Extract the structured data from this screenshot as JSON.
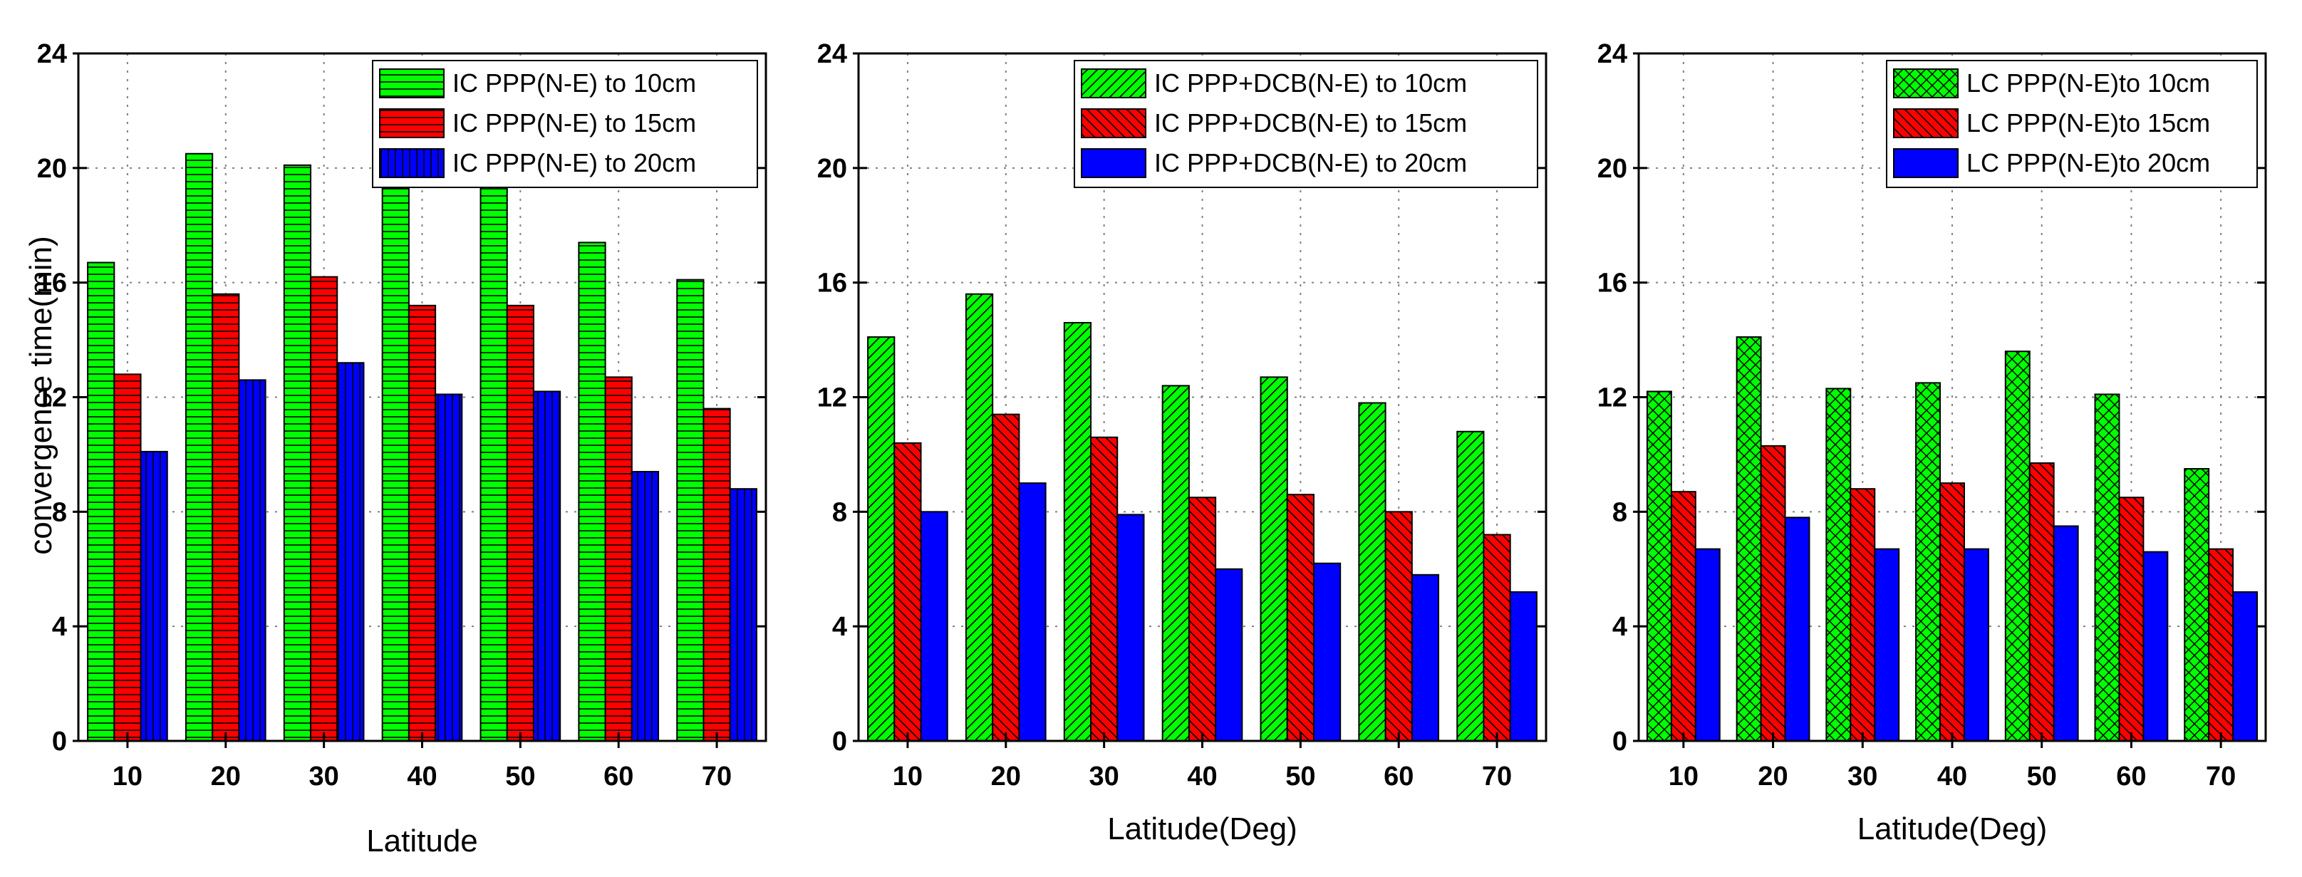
{
  "colors": {
    "green": "#00ff00",
    "red": "#ff0000",
    "blue": "#0000ff",
    "axis": "#000000",
    "grid": "#808080"
  },
  "chart_data": [
    {
      "type": "bar",
      "categories": [
        "10",
        "20",
        "30",
        "40",
        "50",
        "60",
        "70"
      ],
      "xlabel": "Latitude",
      "ylabel": "convergence time(min)",
      "ylim": [
        0,
        24
      ],
      "yticks": [
        "0",
        "4",
        "8",
        "12",
        "16",
        "20",
        "24"
      ],
      "grid": true,
      "legend_position": "top-right",
      "series": [
        {
          "name": "IC PPP(N-E) to 10cm",
          "color": "green",
          "hatch": "horizontal",
          "values": [
            16.7,
            20.5,
            20.1,
            19.3,
            19.4,
            17.4,
            16.1
          ]
        },
        {
          "name": "IC PPP(N-E) to 15cm",
          "color": "red",
          "hatch": "horizontal",
          "values": [
            12.8,
            15.6,
            16.2,
            15.2,
            15.2,
            12.7,
            11.6
          ]
        },
        {
          "name": "IC PPP(N-E) to 20cm",
          "color": "blue",
          "hatch": "vertical",
          "values": [
            10.1,
            12.6,
            13.2,
            12.1,
            12.2,
            9.4,
            8.8
          ]
        }
      ]
    },
    {
      "type": "bar",
      "categories": [
        "10",
        "20",
        "30",
        "40",
        "50",
        "60",
        "70"
      ],
      "xlabel": "Latitude(Deg)",
      "ylabel": "",
      "ylim": [
        0,
        24
      ],
      "yticks": [
        "0",
        "4",
        "8",
        "12",
        "16",
        "20",
        "24"
      ],
      "grid": true,
      "legend_position": "top-right",
      "series": [
        {
          "name": "IC PPP+DCB(N-E) to 10cm",
          "color": "green",
          "hatch": "diagonal-down",
          "values": [
            14.1,
            15.6,
            14.6,
            12.4,
            12.7,
            11.8,
            10.8
          ]
        },
        {
          "name": "IC PPP+DCB(N-E) to 15cm",
          "color": "red",
          "hatch": "diagonal-up",
          "values": [
            10.4,
            11.4,
            10.6,
            8.5,
            8.6,
            8.0,
            7.2
          ]
        },
        {
          "name": "IC PPP+DCB(N-E) to 20cm",
          "color": "blue",
          "hatch": "none",
          "values": [
            8.0,
            9.0,
            7.9,
            6.0,
            6.2,
            5.8,
            5.2
          ]
        }
      ]
    },
    {
      "type": "bar",
      "categories": [
        "10",
        "20",
        "30",
        "40",
        "50",
        "60",
        "70"
      ],
      "xlabel": "Latitude(Deg)",
      "ylabel": "",
      "ylim": [
        0,
        24
      ],
      "yticks": [
        "0",
        "4",
        "8",
        "12",
        "16",
        "20",
        "24"
      ],
      "grid": true,
      "legend_position": "top-right",
      "series": [
        {
          "name": "LC PPP(N-E)to 10cm",
          "color": "green",
          "hatch": "crosshatch",
          "values": [
            12.2,
            14.1,
            12.3,
            12.5,
            13.6,
            12.1,
            9.5
          ]
        },
        {
          "name": "LC PPP(N-E)to 15cm",
          "color": "red",
          "hatch": "diagonal-up",
          "values": [
            8.7,
            10.3,
            8.8,
            9.0,
            9.7,
            8.5,
            6.7
          ]
        },
        {
          "name": "LC PPP(N-E)to 20cm",
          "color": "blue",
          "hatch": "none",
          "values": [
            6.7,
            7.8,
            6.7,
            6.7,
            7.5,
            6.6,
            5.2
          ]
        }
      ]
    }
  ]
}
